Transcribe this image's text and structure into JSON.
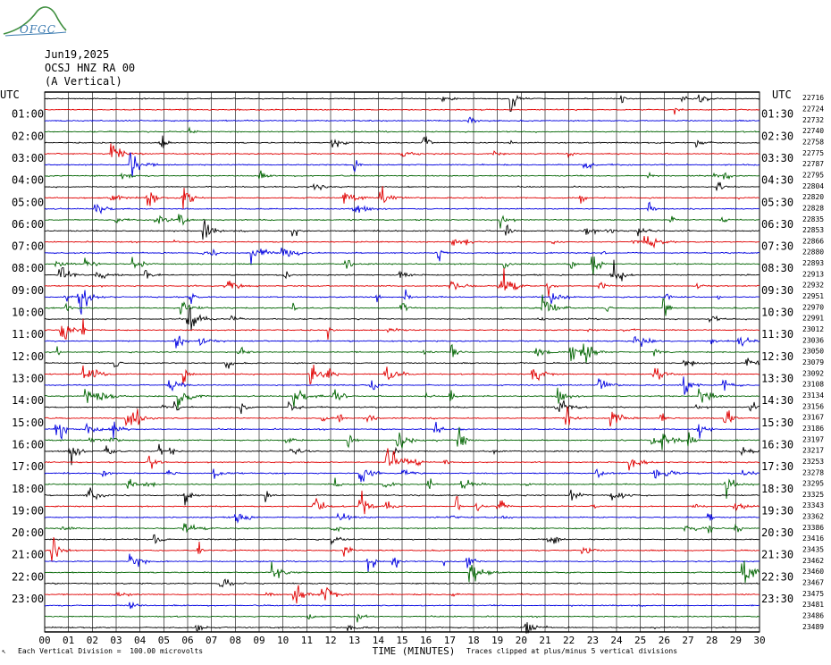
{
  "logo": {
    "text": "OFGC",
    "colors": {
      "swoosh": "#3f8f3f",
      "text": "#3a7ab0"
    }
  },
  "header": {
    "date": "Jun19,2025",
    "station": "OCSJ HNZ RA 00",
    "component": "(A Vertical)"
  },
  "chart_data": {
    "type": "line",
    "title": "",
    "left_axis_label": "UTC",
    "right_axis_label": "UTC",
    "xlabel": "TIME (MINUTES)",
    "x_ticks": [
      "00",
      "01",
      "02",
      "03",
      "04",
      "05",
      "06",
      "07",
      "08",
      "09",
      "10",
      "11",
      "12",
      "13",
      "14",
      "15",
      "16",
      "17",
      "18",
      "19",
      "20",
      "21",
      "22",
      "23",
      "24",
      "25",
      "26",
      "27",
      "28",
      "29",
      "30"
    ],
    "xlim": [
      0,
      30
    ],
    "left_hour_labels": [
      "01:00",
      "02:00",
      "03:00",
      "04:00",
      "05:00",
      "06:00",
      "07:00",
      "08:00",
      "09:00",
      "10:00",
      "11:00",
      "12:00",
      "13:00",
      "14:00",
      "15:00",
      "16:00",
      "17:00",
      "18:00",
      "19:00",
      "20:00",
      "21:00",
      "22:00",
      "23:00"
    ],
    "right_hour_labels": [
      "01:30",
      "02:30",
      "03:30",
      "04:30",
      "05:30",
      "06:30",
      "07:30",
      "08:30",
      "09:30",
      "10:30",
      "11:30",
      "12:30",
      "13:30",
      "14:30",
      "15:30",
      "16:30",
      "17:30",
      "18:30",
      "19:30",
      "20:30",
      "21:30",
      "22:30",
      "23:30"
    ],
    "trace_values": [
      "22716",
      "22724",
      "22732",
      "22740",
      "22758",
      "22775",
      "22787",
      "22795",
      "22804",
      "22820",
      "22828",
      "22835",
      "22853",
      "22866",
      "22880",
      "22893",
      "22913",
      "22932",
      "22951",
      "22970",
      "22991",
      "23012",
      "23036",
      "23050",
      "23079",
      "23092",
      "23108",
      "23134",
      "23156",
      "23167",
      "23186",
      "23197",
      "23217",
      "23253",
      "23278",
      "23295",
      "23325",
      "23343",
      "23362",
      "23386",
      "23416",
      "23435",
      "23462",
      "23460",
      "23467",
      "23475",
      "23481",
      "23486",
      "23489"
    ],
    "trace_colors": [
      "#000000",
      "#e00000",
      "#0000e0",
      "#006400"
    ],
    "grid": true,
    "footer_left": "Each Vertical Division =  100.00 microvolts",
    "footer_right": "Traces clipped at plus/minus 5 vertical divisions"
  }
}
